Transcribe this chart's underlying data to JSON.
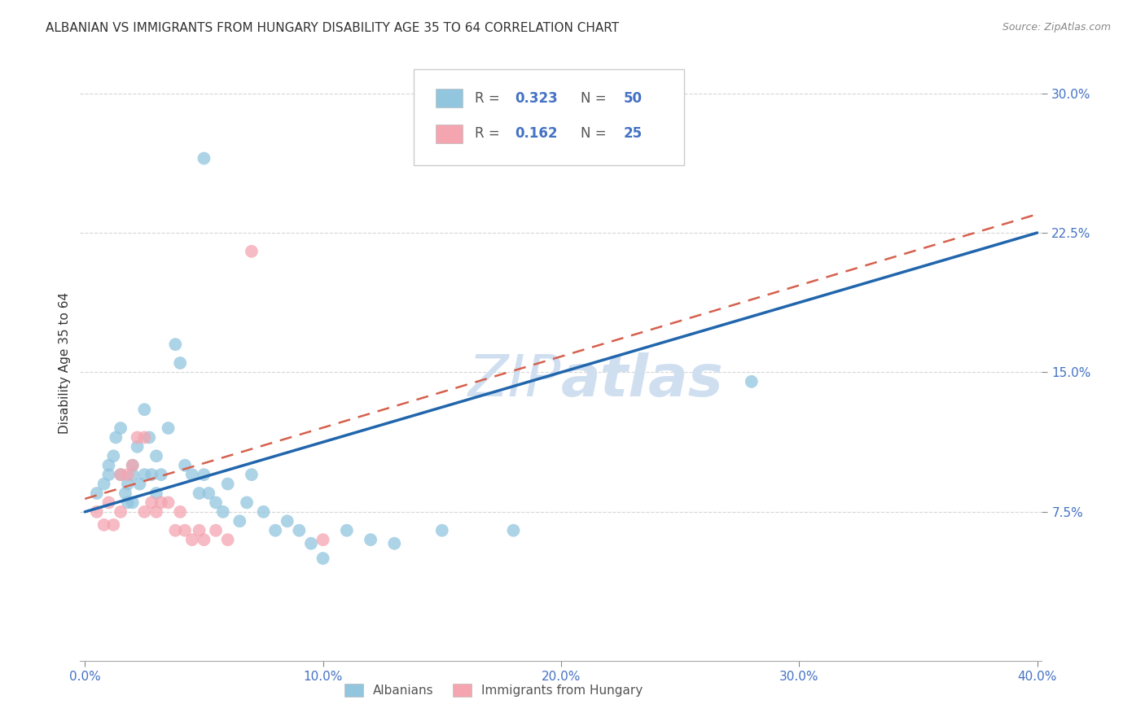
{
  "title": "ALBANIAN VS IMMIGRANTS FROM HUNGARY DISABILITY AGE 35 TO 64 CORRELATION CHART",
  "source_text": "Source: ZipAtlas.com",
  "ylabel": "Disability Age 35 to 64",
  "xlim": [
    -0.002,
    0.402
  ],
  "ylim": [
    -0.005,
    0.315
  ],
  "xticks": [
    0.0,
    0.1,
    0.2,
    0.3,
    0.4
  ],
  "yticks": [
    0.075,
    0.15,
    0.225,
    0.3
  ],
  "xticklabels": [
    "0.0%",
    "10.0%",
    "20.0%",
    "30.0%",
    "40.0%"
  ],
  "yticklabels": [
    "7.5%",
    "15.0%",
    "22.5%",
    "30.0%"
  ],
  "legend_r1": "0.323",
  "legend_n1": "50",
  "legend_r2": "0.162",
  "legend_n2": "25",
  "legend_label1": "Albanians",
  "legend_label2": "Immigrants from Hungary",
  "blue_color": "#92c5de",
  "pink_color": "#f4a5b0",
  "blue_line_color": "#2166ac",
  "pink_line_color": "#d6604d",
  "watermark_color": "#d0dff0",
  "title_fontsize": 11,
  "axis_label_fontsize": 11,
  "tick_fontsize": 11,
  "blue_scatter_x": [
    0.005,
    0.008,
    0.01,
    0.01,
    0.012,
    0.013,
    0.015,
    0.015,
    0.017,
    0.018,
    0.018,
    0.02,
    0.02,
    0.02,
    0.022,
    0.023,
    0.025,
    0.025,
    0.027,
    0.028,
    0.03,
    0.03,
    0.032,
    0.035,
    0.038,
    0.04,
    0.042,
    0.045,
    0.048,
    0.05,
    0.052,
    0.055,
    0.058,
    0.06,
    0.065,
    0.068,
    0.07,
    0.075,
    0.08,
    0.085,
    0.09,
    0.095,
    0.1,
    0.11,
    0.12,
    0.13,
    0.15,
    0.18,
    0.28,
    0.05
  ],
  "blue_scatter_y": [
    0.085,
    0.09,
    0.095,
    0.1,
    0.105,
    0.115,
    0.12,
    0.095,
    0.085,
    0.09,
    0.08,
    0.1,
    0.095,
    0.08,
    0.11,
    0.09,
    0.13,
    0.095,
    0.115,
    0.095,
    0.105,
    0.085,
    0.095,
    0.12,
    0.165,
    0.155,
    0.1,
    0.095,
    0.085,
    0.095,
    0.085,
    0.08,
    0.075,
    0.09,
    0.07,
    0.08,
    0.095,
    0.075,
    0.065,
    0.07,
    0.065,
    0.058,
    0.05,
    0.065,
    0.06,
    0.058,
    0.065,
    0.065,
    0.145,
    0.265
  ],
  "pink_scatter_x": [
    0.005,
    0.008,
    0.01,
    0.012,
    0.015,
    0.015,
    0.018,
    0.02,
    0.022,
    0.025,
    0.025,
    0.028,
    0.03,
    0.032,
    0.035,
    0.038,
    0.04,
    0.042,
    0.045,
    0.048,
    0.05,
    0.055,
    0.06,
    0.07,
    0.1
  ],
  "pink_scatter_y": [
    0.075,
    0.068,
    0.08,
    0.068,
    0.075,
    0.095,
    0.095,
    0.1,
    0.115,
    0.115,
    0.075,
    0.08,
    0.075,
    0.08,
    0.08,
    0.065,
    0.075,
    0.065,
    0.06,
    0.065,
    0.06,
    0.065,
    0.06,
    0.215,
    0.06
  ],
  "blue_line_x": [
    0.0,
    0.4
  ],
  "blue_line_y": [
    0.075,
    0.225
  ],
  "pink_line_x": [
    0.0,
    0.4
  ],
  "pink_line_y": [
    0.082,
    0.235
  ]
}
